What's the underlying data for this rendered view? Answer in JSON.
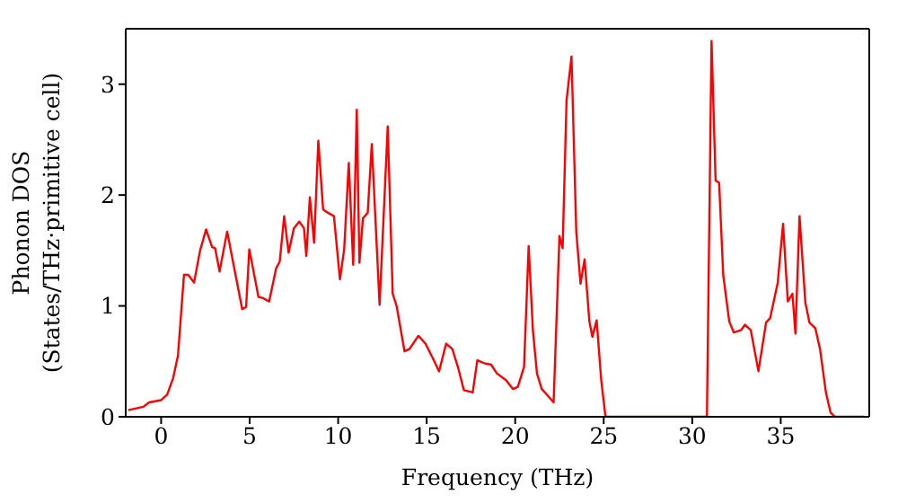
{
  "chart_data": {
    "type": "line",
    "xlabel": "Frequency (THz)",
    "ylabel": "Phonon DOS\n(States/THz·primitive cell)",
    "xlim": [
      -2,
      40
    ],
    "xticks": [
      0,
      5,
      10,
      15,
      20,
      25,
      30,
      35
    ],
    "ylim": [
      0,
      3.5
    ],
    "yticks": [
      0,
      1,
      2,
      3
    ],
    "grid": false,
    "legend": false,
    "marker": "none",
    "line_style": "solid",
    "series": [
      {
        "color": "#ff0000",
        "x": [
          -1.86,
          -1.0,
          -0.68,
          0,
          0.34,
          0.68,
          0.95,
          1.29,
          1.53,
          1.86,
          2.2,
          2.54,
          2.88,
          3.05,
          3.3,
          3.73,
          4.07,
          4.58,
          4.8,
          4.98,
          5.5,
          5.76,
          6.1,
          6.5,
          6.7,
          6.95,
          7.2,
          7.5,
          7.8,
          8.07,
          8.2,
          8.4,
          8.64,
          8.88,
          9.15,
          9.42,
          9.76,
          10.1,
          10.34,
          10.6,
          10.85,
          11.05,
          11.2,
          11.4,
          11.67,
          11.9,
          12.34,
          12.8,
          13.08,
          13.3,
          13.75,
          14.02,
          14.53,
          14.93,
          15.37,
          15.7,
          16.1,
          16.45,
          16.78,
          17.1,
          17.6,
          17.86,
          18.3,
          18.64,
          18.97,
          19.48,
          19.88,
          20.15,
          20.5,
          20.76,
          21.0,
          21.23,
          21.5,
          21.84,
          22.17,
          22.5,
          22.68,
          22.9,
          23.18,
          23.45,
          23.69,
          23.92,
          24.19,
          24.36,
          24.6,
          24.86,
          25.1,
          30.83,
          31.09,
          31.32,
          31.52,
          31.75,
          32.09,
          32.35,
          32.75,
          32.98,
          33.31,
          33.74,
          34.17,
          34.4,
          34.83,
          35.13,
          35.4,
          35.66,
          35.83,
          36.06,
          36.39,
          36.62,
          36.95,
          37.22,
          37.55,
          37.81,
          38.05,
          39.7
        ],
        "values": [
          0.06,
          0.09,
          0.13,
          0.15,
          0.2,
          0.35,
          0.55,
          1.28,
          1.28,
          1.21,
          1.5,
          1.69,
          1.53,
          1.52,
          1.31,
          1.67,
          1.39,
          0.97,
          0.99,
          1.51,
          1.08,
          1.07,
          1.04,
          1.34,
          1.4,
          1.81,
          1.48,
          1.7,
          1.76,
          1.7,
          1.45,
          1.98,
          1.57,
          2.49,
          1.87,
          1.84,
          1.81,
          1.24,
          1.51,
          2.29,
          1.37,
          2.77,
          1.39,
          1.79,
          1.84,
          2.46,
          1.01,
          2.62,
          1.11,
          1.0,
          0.59,
          0.61,
          0.73,
          0.66,
          0.52,
          0.41,
          0.66,
          0.61,
          0.44,
          0.24,
          0.22,
          0.51,
          0.48,
          0.47,
          0.39,
          0.33,
          0.25,
          0.27,
          0.45,
          1.54,
          0.78,
          0.39,
          0.25,
          0.19,
          0.13,
          1.63,
          1.52,
          2.85,
          3.25,
          1.67,
          1.2,
          1.42,
          0.86,
          0.72,
          0.87,
          0.33,
          0,
          0,
          3.39,
          2.13,
          2.11,
          1.28,
          0.86,
          0.76,
          0.78,
          0.83,
          0.78,
          0.41,
          0.85,
          0.89,
          1.21,
          1.74,
          1.04,
          1.11,
          0.75,
          1.81,
          1.03,
          0.85,
          0.8,
          0.61,
          0.22,
          0.04,
          0,
          0
        ]
      }
    ]
  }
}
